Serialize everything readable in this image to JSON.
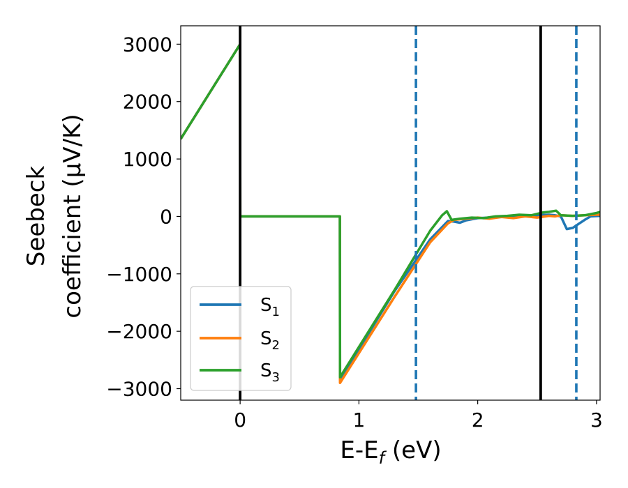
{
  "chart_data": {
    "type": "line",
    "xlabel_main": "E-E",
    "xlabel_sub": "f",
    "xlabel_unit": " (eV)",
    "ylabel_line1": "Seebeck",
    "ylabel_line2": "coefficient  (μV/K)",
    "xlim": [
      -0.5,
      3.03
    ],
    "ylim": [
      -3200,
      3320
    ],
    "xticks": [
      0,
      1,
      2,
      3
    ],
    "xtick_labels": [
      "0",
      "1",
      "2",
      "3"
    ],
    "yticks": [
      3000,
      2000,
      1000,
      0,
      -1000,
      -2000,
      -3000
    ],
    "ytick_labels": [
      "3000",
      "2000",
      "1000",
      "0",
      "−1000",
      "−2000",
      "−3000"
    ],
    "legend_position": "lower-left",
    "vlines": [
      {
        "x": 0.0,
        "style": "solid",
        "color": "#000000"
      },
      {
        "x": 2.53,
        "style": "solid",
        "color": "#000000"
      },
      {
        "x": 1.48,
        "style": "dashed",
        "color": "#1f77b4"
      },
      {
        "x": 2.83,
        "style": "dashed",
        "color": "#1f77b4"
      }
    ],
    "series": [
      {
        "name": "S",
        "sub": "1",
        "color": "#1f77b4",
        "x": [
          -0.5,
          0.0,
          0.001,
          0.84,
          0.841,
          1.3,
          1.6,
          1.75,
          1.8,
          1.85,
          1.9,
          2.0,
          2.1,
          2.2,
          2.3,
          2.4,
          2.5,
          2.6,
          2.65,
          2.7,
          2.75,
          2.8,
          2.85,
          2.9,
          2.95,
          3.03
        ],
        "y": [
          1350,
          3000,
          0,
          0,
          -2850,
          -1300,
          -400,
          -80,
          -90,
          -110,
          -70,
          -30,
          -20,
          -10,
          -5,
          10,
          20,
          30,
          20,
          0,
          -220,
          -200,
          -130,
          -60,
          0,
          10
        ]
      },
      {
        "name": "S",
        "sub": "2",
        "color": "#ff7f0e",
        "x": [
          -0.5,
          0.0,
          0.001,
          0.84,
          0.841,
          1.3,
          1.6,
          1.75,
          1.8,
          1.9,
          2.0,
          2.1,
          2.2,
          2.3,
          2.4,
          2.5,
          2.6,
          2.65,
          2.7,
          2.8,
          2.9,
          3.0,
          3.03
        ],
        "y": [
          1350,
          3000,
          0,
          0,
          -2900,
          -1400,
          -450,
          -120,
          -60,
          -40,
          -20,
          -40,
          -10,
          -30,
          0,
          -20,
          10,
          0,
          20,
          10,
          20,
          30,
          30
        ]
      },
      {
        "name": "S",
        "sub": "3",
        "color": "#2ca02c",
        "x": [
          -0.5,
          0.0,
          0.001,
          0.84,
          0.841,
          1.3,
          1.6,
          1.7,
          1.74,
          1.78,
          1.85,
          1.95,
          2.05,
          2.15,
          2.25,
          2.35,
          2.45,
          2.55,
          2.6,
          2.66,
          2.7,
          2.8,
          2.9,
          3.0,
          3.03
        ],
        "y": [
          1350,
          3000,
          0,
          0,
          -2800,
          -1280,
          -250,
          20,
          90,
          -60,
          -40,
          -20,
          -30,
          0,
          10,
          30,
          20,
          70,
          80,
          100,
          20,
          10,
          20,
          60,
          80
        ]
      }
    ]
  }
}
